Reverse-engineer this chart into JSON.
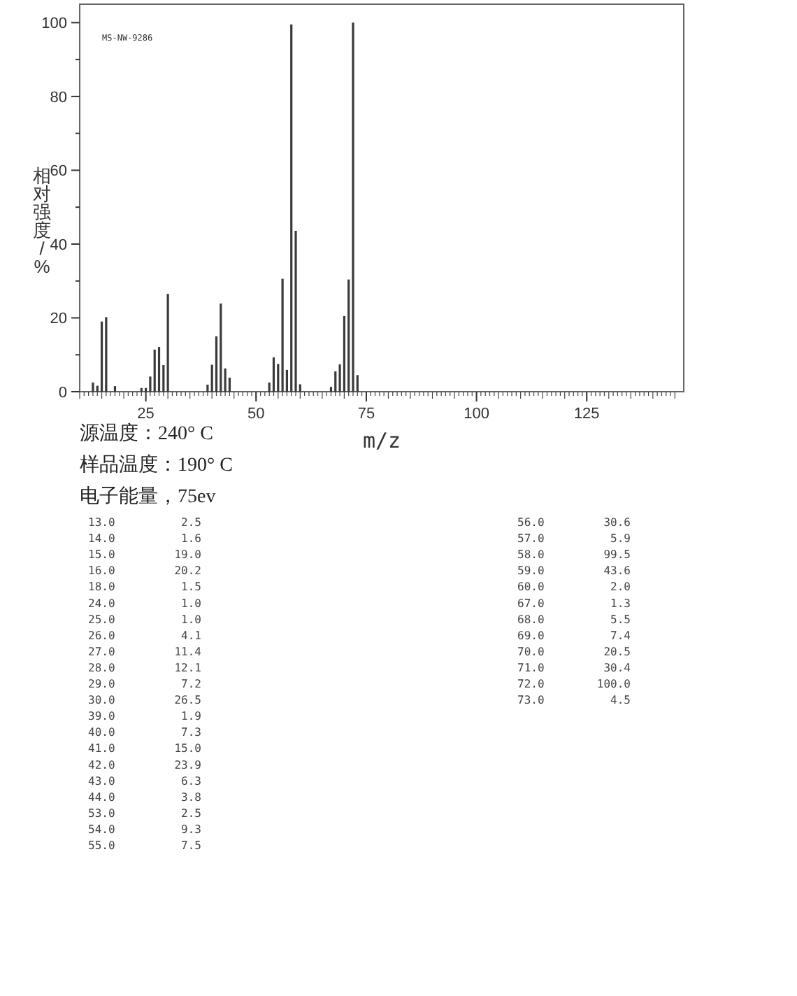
{
  "chart_data": {
    "type": "bar",
    "xlabel": "m/z",
    "ylabel": "相对强度/%",
    "annotations": [
      "MS-NW-9286",
      "源温度：240° C",
      "样品温度：190° C",
      "电子能量，75ev",
      "13.0",
      "2.5",
      "14.0",
      "1.6",
      "15.0",
      "19.0",
      "16.0",
      "20.2",
      "18.0",
      "1.5",
      "24.0",
      "1.0",
      "25.0",
      "1.0",
      "26.0",
      "4.1",
      "27.0",
      "11.4",
      "28.0",
      "12.1",
      "29.0",
      "7.2",
      "30.0",
      "26.5",
      "39.0",
      "1.9",
      "40.0",
      "7.3",
      "41.0",
      "15.0",
      "42.0",
      "23.9",
      "43.0",
      "6.3",
      "44.0",
      "3.8",
      "53.0",
      "2.5",
      "54.0",
      "9.3",
      "55.0",
      "7.5",
      "56.0",
      "30.6",
      "57.0",
      "5.9",
      "58.0",
      "99.5",
      "59.0",
      "43.6",
      "60.0",
      "2.0",
      "67.0",
      "1.3",
      "68.0",
      "5.5",
      "69.0",
      "7.4",
      "70.0",
      "20.5",
      "71.0",
      "30.4",
      "72.0",
      "100.0",
      "73.0",
      "4.5"
    ],
    "x": [
      13,
      14,
      15,
      16,
      18,
      24,
      25,
      26,
      27,
      28,
      29,
      30,
      39,
      40,
      41,
      42,
      43,
      44,
      53,
      54,
      55,
      56,
      57,
      58,
      59,
      60,
      67,
      68,
      69,
      70,
      71,
      72,
      73
    ],
    "values": [
      2.5,
      1.6,
      19.0,
      20.2,
      1.5,
      1.0,
      1.0,
      4.1,
      11.4,
      12.1,
      7.2,
      26.5,
      1.9,
      7.3,
      15.0,
      23.9,
      6.3,
      3.8,
      2.5,
      9.3,
      7.5,
      30.6,
      5.9,
      99.5,
      43.6,
      2.0,
      1.3,
      5.5,
      7.4,
      20.5,
      30.4,
      100.0,
      4.5
    ],
    "color": "#3a3a3a",
    "xlim": [
      10,
      147
    ],
    "xticks": [
      25,
      50,
      75,
      100,
      125
    ],
    "ylim": [
      0,
      105
    ],
    "yticks": [
      0,
      20,
      40,
      60,
      80,
      100
    ]
  }
}
